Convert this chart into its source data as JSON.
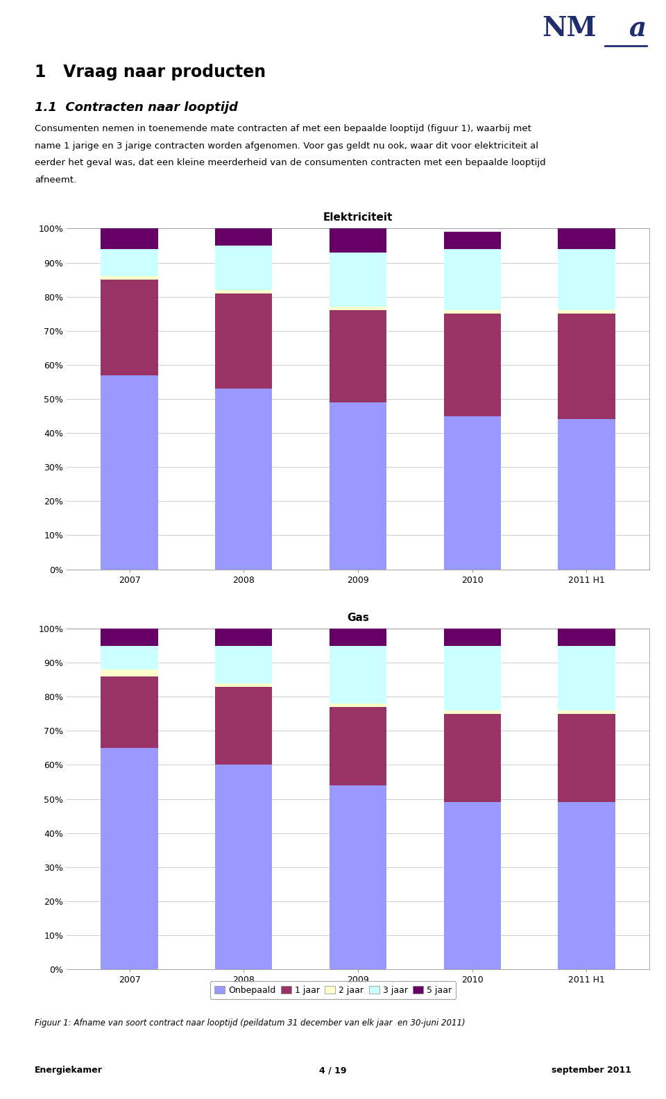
{
  "elektriciteit": {
    "title": "Elektriciteit",
    "years": [
      "2007",
      "2008",
      "2009",
      "2010",
      "2011 H1"
    ],
    "onbepaald": [
      0.57,
      0.53,
      0.49,
      0.45,
      0.44
    ],
    "jaar1": [
      0.28,
      0.28,
      0.27,
      0.3,
      0.31
    ],
    "jaar2": [
      0.01,
      0.01,
      0.01,
      0.01,
      0.01
    ],
    "jaar3": [
      0.08,
      0.13,
      0.16,
      0.18,
      0.18
    ],
    "jaar5": [
      0.06,
      0.05,
      0.07,
      0.05,
      0.06
    ]
  },
  "gas": {
    "title": "Gas",
    "years": [
      "2007",
      "2008",
      "2009",
      "2010",
      "2011 H1"
    ],
    "onbepaald": [
      0.65,
      0.6,
      0.54,
      0.49,
      0.49
    ],
    "jaar1": [
      0.21,
      0.23,
      0.23,
      0.26,
      0.26
    ],
    "jaar2": [
      0.02,
      0.01,
      0.01,
      0.01,
      0.01
    ],
    "jaar3": [
      0.07,
      0.11,
      0.17,
      0.19,
      0.19
    ],
    "jaar5": [
      0.05,
      0.05,
      0.05,
      0.05,
      0.05
    ]
  },
  "colors": {
    "onbepaald": "#9999FF",
    "jaar1": "#993366",
    "jaar2": "#FFFFCC",
    "jaar3": "#CCFFFF",
    "jaar5": "#660066"
  },
  "legend_labels": [
    "Onbepaald",
    "1 jaar",
    "2 jaar",
    "3 jaar",
    "5 jaar"
  ],
  "bar_width": 0.5,
  "ylim": [
    0,
    1.0
  ],
  "yticks": [
    0.0,
    0.1,
    0.2,
    0.3,
    0.4,
    0.5,
    0.6,
    0.7,
    0.8,
    0.9,
    1.0
  ],
  "ytick_labels": [
    "0%",
    "10%",
    "20%",
    "30%",
    "40%",
    "50%",
    "60%",
    "70%",
    "80%",
    "90%",
    "100%"
  ],
  "chart_title_fontsize": 11,
  "tick_fontsize": 9,
  "legend_fontsize": 9,
  "background_color": "#FFFFFF",
  "grid_color": "#CCCCCC",
  "nma_color": "#1F2D6E",
  "figure_title": "1   Vraag naar producten",
  "section_title": "1.1  Contracten naar looptijd",
  "body_lines": [
    "Consumenten nemen in toenemende mate contracten af met een bepaalde looptijd (figuur 1), waarbij met",
    "name 1 jarige en 3 jarige contracten worden afgenomen. Voor gas geldt nu ook, waar dit voor elektriciteit al",
    "eerder het geval was, dat een kleine meerderheid van de consumenten contracten met een bepaalde looptijd",
    "afneemt."
  ],
  "footer_left": "Energiekamer",
  "footer_center": "4 / 19",
  "footer_right": "september 2011",
  "figuur_caption": "Figuur 1: Afname van soort contract naar looptijd (peildatum 31 december van elk jaar  en 30-juni 2011)"
}
